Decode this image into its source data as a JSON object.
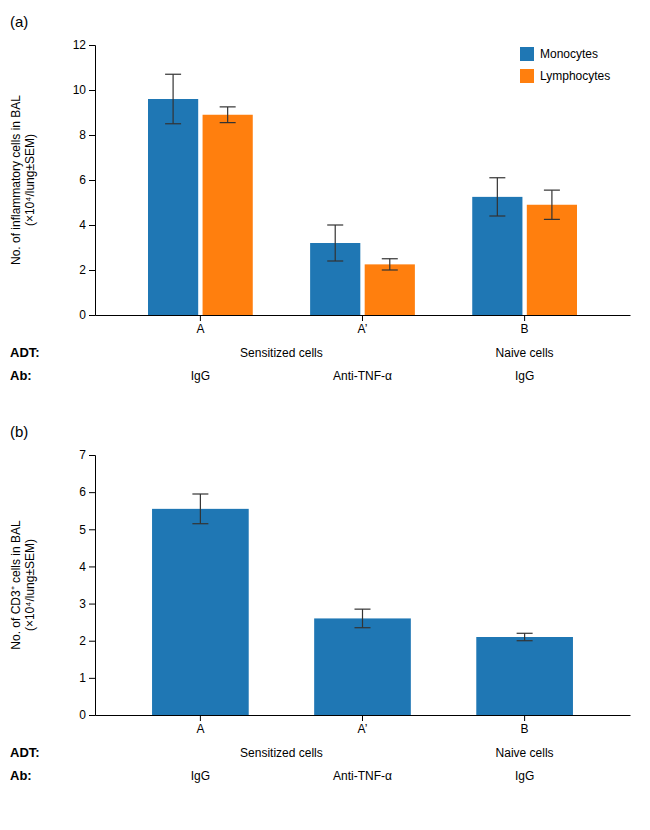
{
  "chart_data": [
    {
      "type": "bar",
      "title": "(a)",
      "categories": [
        "A",
        "A’",
        "B"
      ],
      "series": [
        {
          "name": "Monocytes",
          "values": [
            9.6,
            3.2,
            5.25
          ],
          "errors": [
            1.1,
            0.8,
            0.85
          ]
        },
        {
          "name": "Lymphocytes",
          "values": [
            8.9,
            2.25,
            4.9
          ],
          "errors": [
            0.35,
            0.25,
            0.65
          ]
        }
      ],
      "ylim": [
        0,
        12
      ],
      "yticks": [
        0,
        2,
        4,
        6,
        8,
        10,
        12
      ],
      "y_label": "No. of inflammatory cells in BAL\n(×10⁴/lung±SEM)",
      "legend": "top-right",
      "annotations": [
        {
          "label": "ADT:",
          "texts": [
            "Sensitized cells",
            "Naive cells"
          ]
        },
        {
          "label": "Ab:",
          "texts": [
            "IgG",
            "Anti-TNF-α",
            "IgG"
          ]
        }
      ]
    },
    {
      "type": "bar",
      "title": "(b)",
      "categories": [
        "A",
        "A’",
        "B"
      ],
      "series": [
        {
          "values": [
            5.55,
            2.6,
            2.1
          ],
          "errors": [
            0.4,
            0.25,
            0.1
          ]
        }
      ],
      "ylim": [
        0,
        7
      ],
      "yticks": [
        0,
        1,
        2,
        3,
        4,
        5,
        6,
        7
      ],
      "y_label": "No. of CD3⁺ cells in BAL\n(×10⁴/lung±SEM)",
      "annotations": [
        {
          "label": "ADT:",
          "texts": [
            "Sensitized cells",
            "Naive cells"
          ]
        },
        {
          "label": "Ab:",
          "texts": [
            "IgG",
            "Anti-TNF-α",
            "IgG"
          ]
        }
      ]
    }
  ]
}
